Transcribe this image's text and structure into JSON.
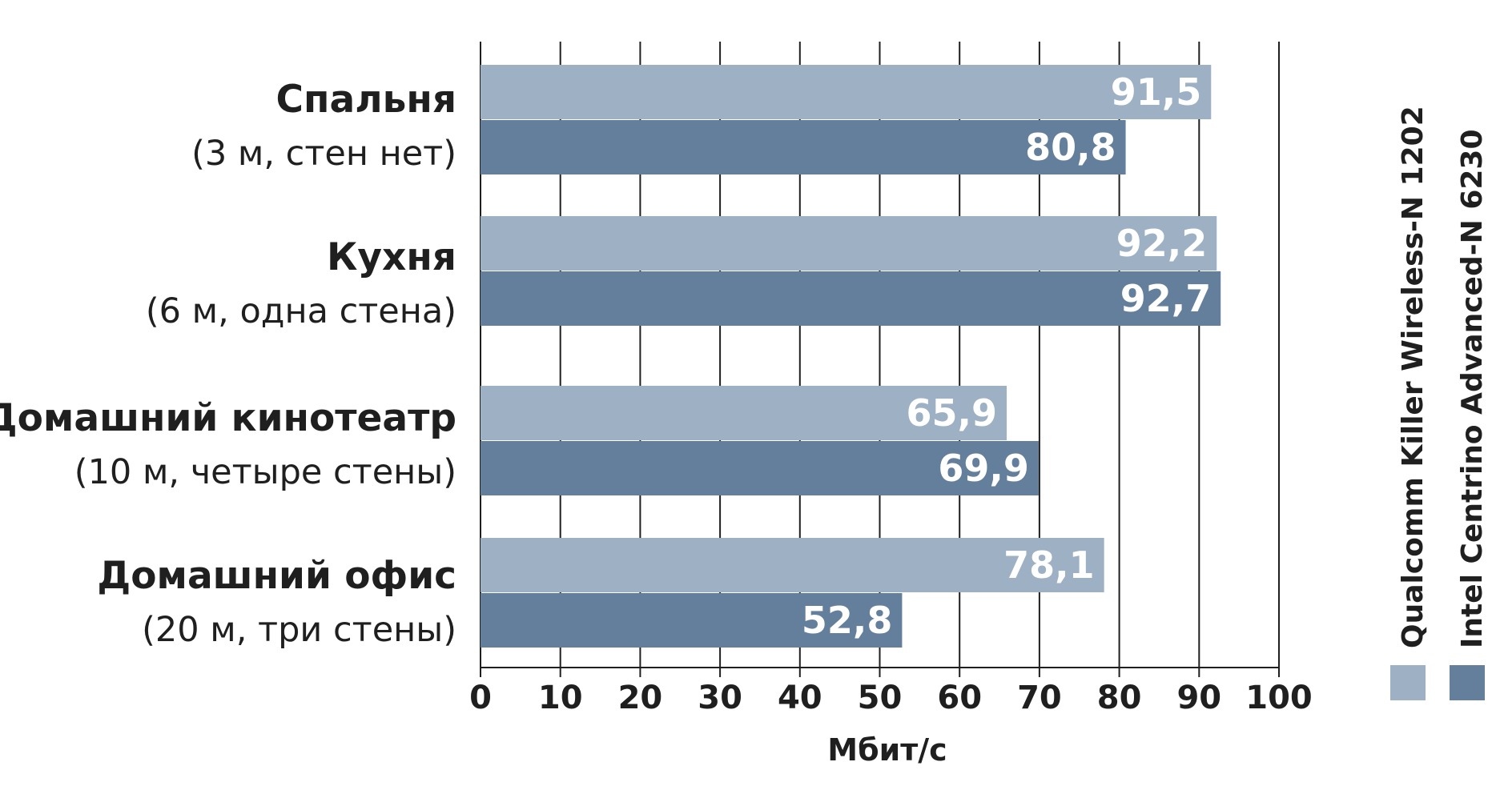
{
  "chart_data": {
    "type": "bar",
    "orientation": "horizontal",
    "categories": [
      {
        "title": "Спальня",
        "subtitle": "(3 м, стен нет)"
      },
      {
        "title": "Кухня",
        "subtitle": "(6 м, одна стена)"
      },
      {
        "title": "Домашний кинотеатр",
        "subtitle": "(10 м, четыре стены)"
      },
      {
        "title": "Домашний офис",
        "subtitle": "(20 м, три стены)"
      }
    ],
    "series": [
      {
        "name": "Qualcomm Killer Wireless-N 1202",
        "color": "#9db0c4",
        "values": [
          91.5,
          92.2,
          65.9,
          78.1
        ],
        "labels": [
          "91,5",
          "92,2",
          "65,9",
          "78,1"
        ]
      },
      {
        "name": "Intel Centrino Advanced-N 6230",
        "color": "#647f9b",
        "values": [
          80.8,
          92.7,
          69.9,
          52.8
        ],
        "labels": [
          "80,8",
          "92,7",
          "69,9",
          "52,8"
        ]
      }
    ],
    "xlabel": "Мбит/с",
    "xlim": [
      0,
      100
    ],
    "ticks": [
      "0",
      "10",
      "20",
      "30",
      "40",
      "50",
      "60",
      "70",
      "80",
      "90",
      "100"
    ],
    "grid": true,
    "legend_position": "right"
  }
}
